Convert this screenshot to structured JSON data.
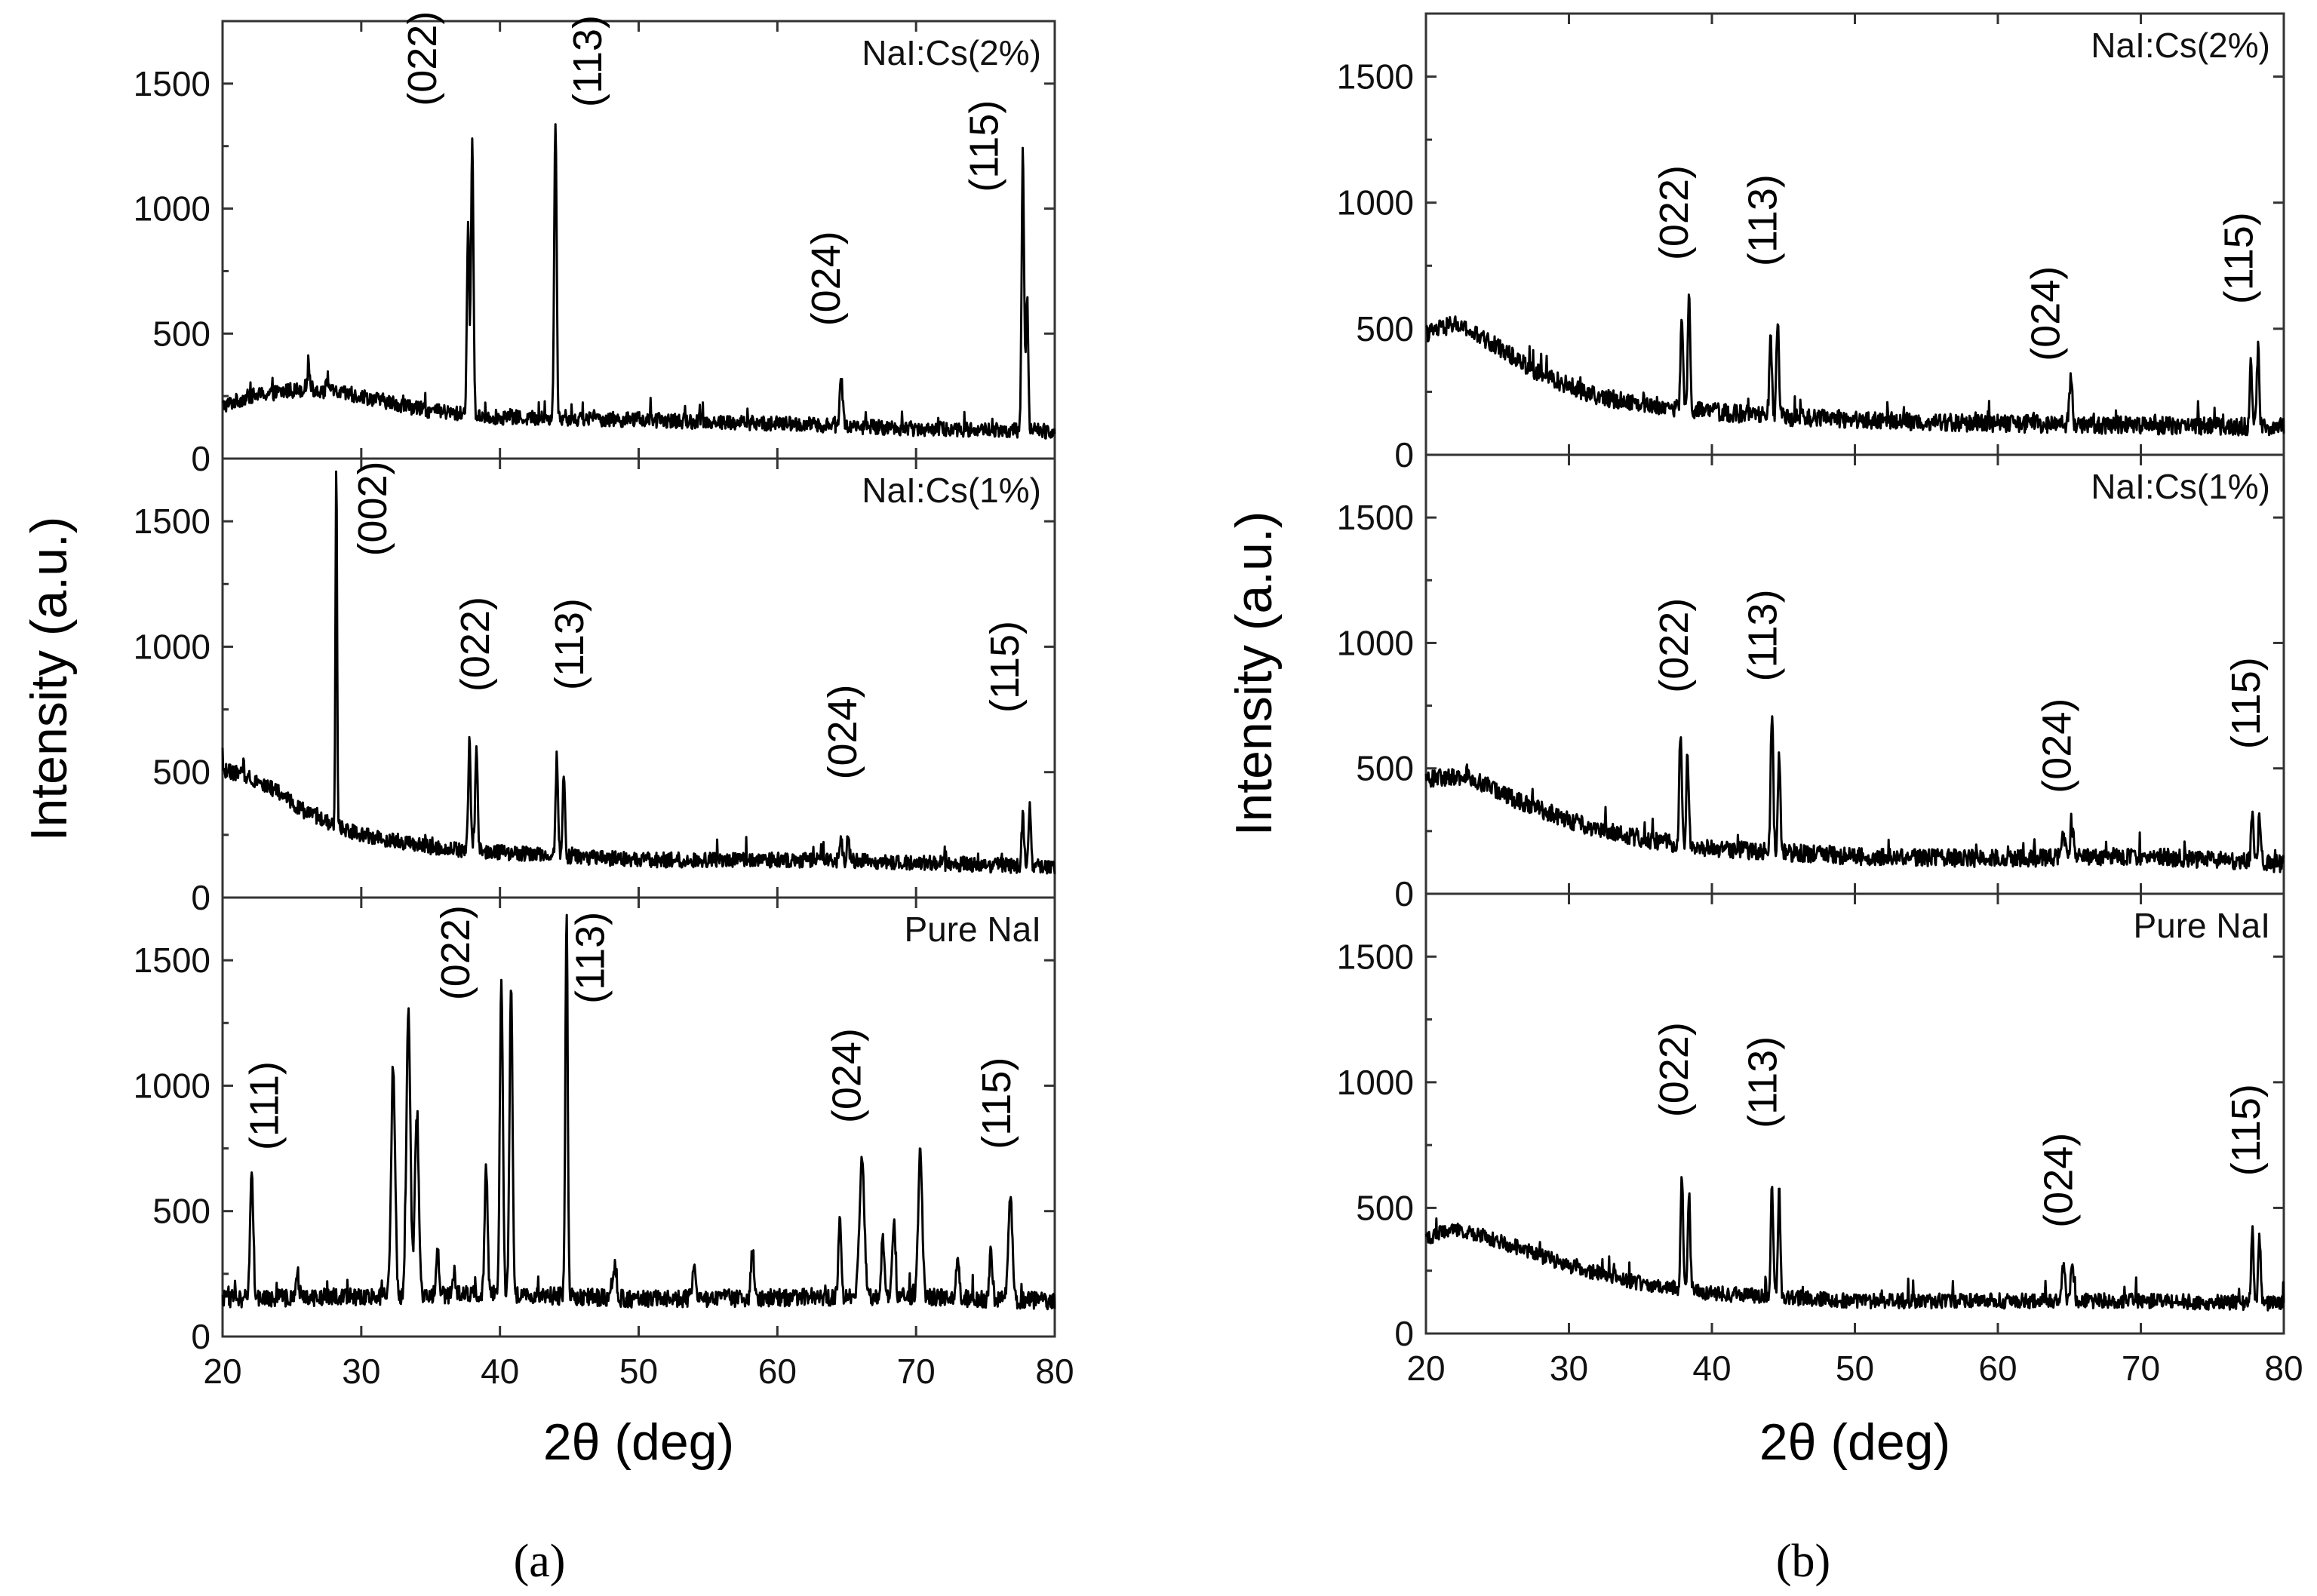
{
  "chart_data": [
    {
      "type": "line",
      "figure": "a",
      "caption": "(a)",
      "xlabel": "2θ (deg)",
      "ylabel": "Intensity (a.u.)",
      "xlim": [
        20,
        80
      ],
      "xticks": [
        20,
        30,
        40,
        50,
        60,
        70,
        80
      ],
      "ylim": [
        0,
        1750
      ],
      "yticks": [
        0,
        500,
        1000,
        1500
      ],
      "panels": [
        {
          "label": "NaI:Cs(2%)",
          "baseline": [
            [
              20,
              210
            ],
            [
              22,
              250
            ],
            [
              26,
              280
            ],
            [
              30,
              250
            ],
            [
              35,
              190
            ],
            [
              40,
              165
            ],
            [
              50,
              155
            ],
            [
              60,
              140
            ],
            [
              70,
              120
            ],
            [
              80,
              110
            ]
          ],
          "noise": 30,
          "peaks": [
            {
              "x": 26.2,
              "y": 360,
              "w": 0.15
            },
            {
              "x": 27.6,
              "y": 320,
              "w": 0.15
            },
            {
              "x": 37.7,
              "y": 920,
              "w": 0.12
            },
            {
              "x": 38.0,
              "y": 1280,
              "w": 0.12
            },
            {
              "x": 44.0,
              "y": 1360,
              "w": 0.12
            },
            {
              "x": 64.6,
              "y": 320,
              "w": 0.15
            },
            {
              "x": 77.7,
              "y": 1240,
              "w": 0.12
            },
            {
              "x": 78.0,
              "y": 650,
              "w": 0.12
            }
          ],
          "peak_labels": [
            {
              "text": "(022)",
              "x": 35.4,
              "y": 1600
            },
            {
              "text": "(113)",
              "x": 47.3,
              "y": 1590
            },
            {
              "text": "(024)",
              "x": 64.5,
              "y": 720
            },
            {
              "text": "(115)",
              "x": 75.9,
              "y": 1250
            }
          ]
        },
        {
          "label": "NaI:Cs(1%)",
          "baseline": [
            [
              20,
              510
            ],
            [
              22,
              480
            ],
            [
              24,
              420
            ],
            [
              26,
              340
            ],
            [
              28,
              290
            ],
            [
              30,
              250
            ],
            [
              35,
              200
            ],
            [
              40,
              180
            ],
            [
              50,
              150
            ],
            [
              60,
              150
            ],
            [
              70,
              140
            ],
            [
              80,
              120
            ]
          ],
          "noise": 30,
          "peaks": [
            {
              "x": 28.2,
              "y": 1740,
              "w": 0.08
            },
            {
              "x": 37.8,
              "y": 620,
              "w": 0.12
            },
            {
              "x": 38.3,
              "y": 600,
              "w": 0.12
            },
            {
              "x": 44.1,
              "y": 560,
              "w": 0.12
            },
            {
              "x": 44.6,
              "y": 500,
              "w": 0.12
            },
            {
              "x": 64.6,
              "y": 250,
              "w": 0.12
            },
            {
              "x": 65.1,
              "y": 240,
              "w": 0.12
            },
            {
              "x": 77.7,
              "y": 330,
              "w": 0.12
            },
            {
              "x": 78.2,
              "y": 380,
              "w": 0.12
            }
          ],
          "peak_labels": [
            {
              "text": "(002)",
              "x": 31.8,
              "y": 1550
            },
            {
              "text": "(022)",
              "x": 39.2,
              "y": 1010
            },
            {
              "text": "(113)",
              "x": 46.0,
              "y": 1010
            },
            {
              "text": "(024)",
              "x": 65.7,
              "y": 660
            },
            {
              "text": "(115)",
              "x": 77.4,
              "y": 920
            }
          ]
        },
        {
          "label": "Pure NaI",
          "baseline": [
            [
              20,
              150
            ],
            [
              30,
              160
            ],
            [
              40,
              170
            ],
            [
              50,
              150
            ],
            [
              60,
              155
            ],
            [
              70,
              160
            ],
            [
              80,
              140
            ]
          ],
          "noise": 35,
          "peaks": [
            {
              "x": 22.1,
              "y": 680,
              "w": 0.15
            },
            {
              "x": 25.4,
              "y": 250,
              "w": 0.15
            },
            {
              "x": 32.3,
              "y": 1050,
              "w": 0.2
            },
            {
              "x": 33.4,
              "y": 1290,
              "w": 0.2
            },
            {
              "x": 34.0,
              "y": 880,
              "w": 0.2
            },
            {
              "x": 35.5,
              "y": 350,
              "w": 0.15
            },
            {
              "x": 36.7,
              "y": 260,
              "w": 0.15
            },
            {
              "x": 39.0,
              "y": 680,
              "w": 0.15
            },
            {
              "x": 40.1,
              "y": 1440,
              "w": 0.15
            },
            {
              "x": 40.8,
              "y": 1390,
              "w": 0.15
            },
            {
              "x": 44.8,
              "y": 1700,
              "w": 0.12
            },
            {
              "x": 48.3,
              "y": 300,
              "w": 0.15
            },
            {
              "x": 54.0,
              "y": 270,
              "w": 0.15
            },
            {
              "x": 58.2,
              "y": 350,
              "w": 0.15
            },
            {
              "x": 64.5,
              "y": 450,
              "w": 0.15
            },
            {
              "x": 66.1,
              "y": 700,
              "w": 0.25
            },
            {
              "x": 67.6,
              "y": 400,
              "w": 0.15
            },
            {
              "x": 68.4,
              "y": 450,
              "w": 0.15
            },
            {
              "x": 70.3,
              "y": 740,
              "w": 0.2
            },
            {
              "x": 73.0,
              "y": 300,
              "w": 0.15
            },
            {
              "x": 75.4,
              "y": 350,
              "w": 0.15
            },
            {
              "x": 76.8,
              "y": 560,
              "w": 0.2
            }
          ],
          "peak_labels": [
            {
              "text": "(111)",
              "x": 24.0,
              "y": 920
            },
            {
              "text": "(022)",
              "x": 37.8,
              "y": 1530
            },
            {
              "text": "(113)",
              "x": 47.5,
              "y": 1510
            },
            {
              "text": "(024)",
              "x": 66.0,
              "y": 1040
            },
            {
              "text": "(115)",
              "x": 76.8,
              "y": 930
            }
          ]
        }
      ]
    },
    {
      "type": "line",
      "figure": "b",
      "caption": "(b)",
      "xlabel": "2θ (deg)",
      "ylabel": "Intensity (a.u.)",
      "xlim": [
        20,
        80
      ],
      "xticks": [
        20,
        30,
        40,
        50,
        60,
        70,
        80
      ],
      "ylim": [
        0,
        1750
      ],
      "yticks": [
        0,
        500,
        1000,
        1500
      ],
      "panels": [
        {
          "label": "NaI:Cs(2%)",
          "baseline": [
            [
              20,
              480
            ],
            [
              22,
              520
            ],
            [
              25,
              430
            ],
            [
              28,
              320
            ],
            [
              32,
              230
            ],
            [
              38,
              180
            ],
            [
              45,
              150
            ],
            [
              55,
              130
            ],
            [
              65,
              120
            ],
            [
              80,
              110
            ]
          ],
          "noise": 35,
          "peaks": [
            {
              "x": 37.9,
              "y": 560,
              "w": 0.12
            },
            {
              "x": 38.4,
              "y": 620,
              "w": 0.12
            },
            {
              "x": 44.1,
              "y": 460,
              "w": 0.12
            },
            {
              "x": 44.6,
              "y": 530,
              "w": 0.12
            },
            {
              "x": 65.1,
              "y": 300,
              "w": 0.15
            },
            {
              "x": 77.7,
              "y": 370,
              "w": 0.12
            },
            {
              "x": 78.2,
              "y": 420,
              "w": 0.12
            }
          ],
          "peak_labels": [
            {
              "text": "(022)",
              "x": 38.3,
              "y": 960
            },
            {
              "text": "(113)",
              "x": 44.5,
              "y": 930
            },
            {
              "text": "(024)",
              "x": 64.3,
              "y": 560
            },
            {
              "text": "(115)",
              "x": 77.8,
              "y": 780
            }
          ]
        },
        {
          "label": "NaI:Cs(1%)",
          "baseline": [
            [
              20,
              460
            ],
            [
              23,
              470
            ],
            [
              26,
              380
            ],
            [
              30,
              290
            ],
            [
              35,
              220
            ],
            [
              40,
              180
            ],
            [
              50,
              150
            ],
            [
              60,
              140
            ],
            [
              70,
              150
            ],
            [
              80,
              120
            ]
          ],
          "noise": 35,
          "peaks": [
            {
              "x": 37.8,
              "y": 640,
              "w": 0.12
            },
            {
              "x": 38.3,
              "y": 540,
              "w": 0.12
            },
            {
              "x": 44.2,
              "y": 730,
              "w": 0.12
            },
            {
              "x": 44.7,
              "y": 540,
              "w": 0.12
            },
            {
              "x": 64.6,
              "y": 230,
              "w": 0.15
            },
            {
              "x": 65.2,
              "y": 250,
              "w": 0.15
            },
            {
              "x": 77.8,
              "y": 340,
              "w": 0.12
            },
            {
              "x": 78.3,
              "y": 320,
              "w": 0.12
            }
          ],
          "peak_labels": [
            {
              "text": "(022)",
              "x": 38.3,
              "y": 990
            },
            {
              "text": "(113)",
              "x": 44.5,
              "y": 1030
            },
            {
              "text": "(024)",
              "x": 65.1,
              "y": 590
            },
            {
              "text": "(115)",
              "x": 78.3,
              "y": 760
            }
          ]
        },
        {
          "label": "Pure NaI",
          "baseline": [
            [
              20,
              380
            ],
            [
              22,
              420
            ],
            [
              25,
              370
            ],
            [
              30,
              270
            ],
            [
              35,
              200
            ],
            [
              40,
              160
            ],
            [
              50,
              130
            ],
            [
              60,
              130
            ],
            [
              70,
              130
            ],
            [
              80,
              120
            ]
          ],
          "noise": 30,
          "peaks": [
            {
              "x": 37.9,
              "y": 630,
              "w": 0.12
            },
            {
              "x": 38.4,
              "y": 560,
              "w": 0.12
            },
            {
              "x": 44.2,
              "y": 580,
              "w": 0.12
            },
            {
              "x": 44.7,
              "y": 570,
              "w": 0.12
            },
            {
              "x": 64.6,
              "y": 270,
              "w": 0.15
            },
            {
              "x": 65.2,
              "y": 270,
              "w": 0.15
            },
            {
              "x": 77.8,
              "y": 410,
              "w": 0.12
            },
            {
              "x": 78.3,
              "y": 390,
              "w": 0.12
            }
          ],
          "peak_labels": [
            {
              "text": "(022)",
              "x": 38.3,
              "y": 1050
            },
            {
              "text": "(113)",
              "x": 44.5,
              "y": 1000
            },
            {
              "text": "(024)",
              "x": 65.2,
              "y": 610
            },
            {
              "text": "(115)",
              "x": 78.3,
              "y": 810
            }
          ]
        }
      ]
    }
  ]
}
